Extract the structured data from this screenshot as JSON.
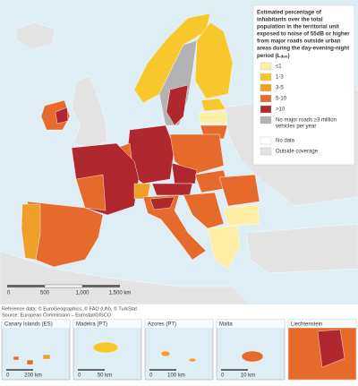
{
  "legend": {
    "title_lines": [
      "Estimated percentage of",
      "inhabitants over the total",
      "population in the territorial unit",
      "exposed to noise of 55dB or higher",
      "from major roads outside urban",
      "areas during the day-evening-night"
    ],
    "title_last": [
      "period (L",
      "den",
      ")"
    ],
    "items": [
      {
        "label": "≤1",
        "color": "#fdf0a6"
      },
      {
        "label": "1-3",
        "color": "#f8c72c"
      },
      {
        "label": "3-5",
        "color": "#f0a02a"
      },
      {
        "label": "5-10",
        "color": "#e56a2c"
      },
      {
        "label": ">10",
        "color": "#b0272d"
      },
      {
        "label": [
          "No major roads ≥3 million",
          "vehicles per year"
        ],
        "color": "#b3b3b3"
      },
      {
        "label": "No data",
        "color": "#ffffff"
      },
      {
        "label": "Outside coverage",
        "color": "#e3e3e3"
      }
    ]
  },
  "scale_bar": [
    "0",
    "500",
    "1,000",
    "1,500 km"
  ],
  "reference": [
    "Reference data: © EuroGeographics, © FAO (UN), © TurkStat",
    "Source: European Commission – Eurostat/GISCO"
  ],
  "insets": [
    {
      "title": "Canary Islands (ES)",
      "scale": [
        "0",
        "200 km"
      ]
    },
    {
      "title": "Madeira (PT)",
      "scale": [
        "0",
        "50 km"
      ]
    },
    {
      "title": "Azores (PT)",
      "scale": [
        "0",
        "100 km"
      ]
    },
    {
      "title": "Malta",
      "scale": [
        "0",
        "10 km"
      ]
    },
    {
      "title": "Liechtenstein",
      "scale": []
    }
  ]
}
